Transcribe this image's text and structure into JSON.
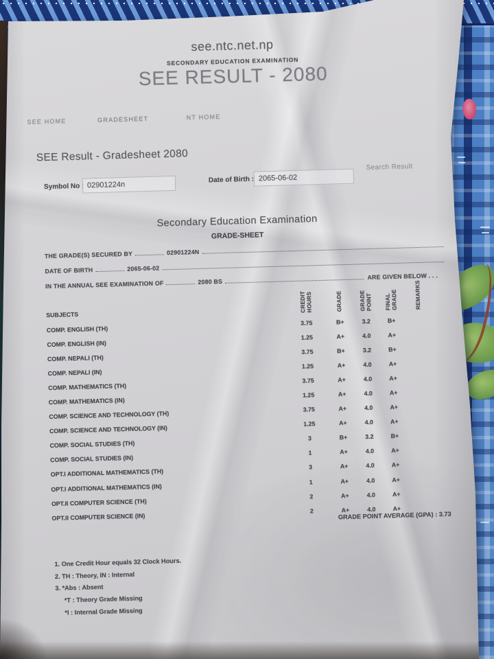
{
  "page": {
    "site": "see.ntc.net.np",
    "site_subtitle": "SECONDARY EDUCATION EXAMINATION",
    "title": "SEE RESULT - 2080"
  },
  "nav": {
    "see_home": "SEE HOME",
    "gradesheet": "GRADESHEET",
    "nt_home": "NT HOME"
  },
  "section": {
    "title": "SEE Result - Gradesheet 2080"
  },
  "form": {
    "symbol_label": "Symbol No :",
    "symbol_value": "02901224n",
    "dob_label": "Date of Birth :",
    "dob_value": "2065-06-02",
    "search_button": "Search Result"
  },
  "sheet": {
    "heading": "Secondary Education Examination",
    "subheading": "GRADE-SHEET",
    "line1_label": "THE GRADE(S) SECURED BY",
    "line1_value": "02901224N",
    "line2_label": "DATE OF BIRTH",
    "line2_value": "2065-06-02",
    "line3_label": "IN THE ANNUAL SEE EXAMINATION OF",
    "line3_value": "2080 BS",
    "line3_tail": "ARE GIVEN BELOW . . .",
    "table": {
      "subject_header": "SUBJECTS",
      "col_headers": [
        "CREDIT HOURS",
        "GRADE",
        "GRADE POINT",
        "FINAL GRADE",
        "REMARKS"
      ],
      "rows": [
        {
          "subject": "COMP. ENGLISH (TH)",
          "credit_hours": "3.75",
          "grade": "B+",
          "grade_point": "3.2",
          "final_grade": "B+",
          "remarks": ""
        },
        {
          "subject": "COMP. ENGLISH (IN)",
          "credit_hours": "1.25",
          "grade": "A+",
          "grade_point": "4.0",
          "final_grade": "A+",
          "remarks": ""
        },
        {
          "subject": "COMP. NEPALI (TH)",
          "credit_hours": "3.75",
          "grade": "B+",
          "grade_point": "3.2",
          "final_grade": "B+",
          "remarks": ""
        },
        {
          "subject": "COMP. NEPALI (IN)",
          "credit_hours": "1.25",
          "grade": "A+",
          "grade_point": "4.0",
          "final_grade": "A+",
          "remarks": ""
        },
        {
          "subject": "COMP. MATHEMATICS (TH)",
          "credit_hours": "3.75",
          "grade": "A+",
          "grade_point": "4.0",
          "final_grade": "A+",
          "remarks": ""
        },
        {
          "subject": "COMP. MATHEMATICS (IN)",
          "credit_hours": "1.25",
          "grade": "A+",
          "grade_point": "4.0",
          "final_grade": "A+",
          "remarks": ""
        },
        {
          "subject": "COMP. SCIENCE AND TECHNOLOGY (TH)",
          "credit_hours": "3.75",
          "grade": "A+",
          "grade_point": "4.0",
          "final_grade": "A+",
          "remarks": ""
        },
        {
          "subject": "COMP. SCIENCE AND TECHNOLOGY (IN)",
          "credit_hours": "1.25",
          "grade": "A+",
          "grade_point": "4.0",
          "final_grade": "A+",
          "remarks": ""
        },
        {
          "subject": "COMP. SOCIAL STUDIES (TH)",
          "credit_hours": "3",
          "grade": "B+",
          "grade_point": "3.2",
          "final_grade": "B+",
          "remarks": ""
        },
        {
          "subject": "COMP. SOCIAL STUDIES (IN)",
          "credit_hours": "1",
          "grade": "A+",
          "grade_point": "4.0",
          "final_grade": "A+",
          "remarks": ""
        },
        {
          "subject": "OPT.I ADDITIONAL MATHEMATICS (TH)",
          "credit_hours": "3",
          "grade": "A+",
          "grade_point": "4.0",
          "final_grade": "A+",
          "remarks": ""
        },
        {
          "subject": "OPT.I ADDITIONAL MATHEMATICS (IN)",
          "credit_hours": "1",
          "grade": "A+",
          "grade_point": "4.0",
          "final_grade": "A+",
          "remarks": ""
        },
        {
          "subject": "OPT.II COMPUTER SCIENCE (TH)",
          "credit_hours": "2",
          "grade": "A+",
          "grade_point": "4.0",
          "final_grade": "A+",
          "remarks": ""
        },
        {
          "subject": "OPT.II COMPUTER SCIENCE (IN)",
          "credit_hours": "2",
          "grade": "A+",
          "grade_point": "4.0",
          "final_grade": "A+",
          "remarks": ""
        }
      ]
    },
    "gpa_label": "GRADE POINT AVERAGE (GPA) :",
    "gpa_value": "3.73",
    "footnotes": [
      "1. One Credit Hour equals 32 Clock Hours.",
      "2. TH : Theory, IN : Internal",
      "3. *Abs : Absent",
      "*T : Theory Grade Missing",
      "*I : Internal Grade Missing"
    ]
  },
  "colors": {
    "paper": "#d4d3d6",
    "fabric_blue": "#4d81c6",
    "fabric_navy": "#1b3677",
    "leaf_green": "#6f9c4e",
    "accent_pink": "#c8496f",
    "accent_red": "#8a3c2a"
  }
}
